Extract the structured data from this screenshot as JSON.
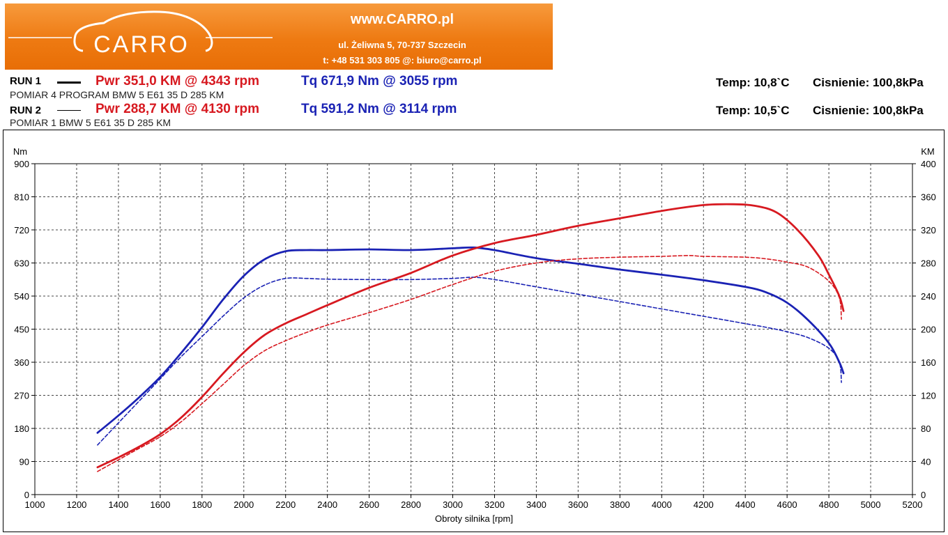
{
  "header": {
    "logo_text": "CARRO",
    "site": "www.CARRO.pl",
    "address": "ul. Żeliwna 5, 70-737 Szczecin",
    "contact": "t: +48 531 303 805   @: biuro@carro.pl"
  },
  "runs": [
    {
      "label": "RUN 1",
      "pwr": "Pwr  351,0 KM @ 4343 rpm",
      "tq": "Tq 671,9 Nm @ 3055 rpm",
      "description": "POMIAR 4 PROGRAM BMW 5 E61 35 D 285 KM",
      "temp": "Temp: 10,8`C",
      "pressure": "Cisnienie: 100,8kPa"
    },
    {
      "label": "RUN 2",
      "pwr": "Pwr  288,7 KM @ 4130 rpm",
      "tq": "Tq 591,2 Nm @ 3114 rpm",
      "description": "POMIAR 1 BMW 5 E61 35 D 285 KM",
      "temp": "Temp: 10,5`C",
      "pressure": "Cisnienie: 100,8kPa"
    }
  ],
  "colors": {
    "power": "#d71920",
    "torque": "#1a22b4",
    "accent": "#ee7a12"
  },
  "chart_data": {
    "type": "line",
    "xlabel": "Obroty silnika [rpm]",
    "ylabel": "Nm",
    "y2label": "KM",
    "xlim": [
      1000,
      5200
    ],
    "ylim": [
      0,
      900
    ],
    "y2lim": [
      0,
      400
    ],
    "xticks": [
      1000,
      1200,
      1400,
      1600,
      1800,
      2000,
      2200,
      2400,
      2600,
      2800,
      3000,
      3200,
      3400,
      3600,
      3800,
      4000,
      4200,
      4400,
      4600,
      4800,
      5000,
      5200
    ],
    "yticks": [
      0,
      90,
      180,
      270,
      360,
      450,
      540,
      630,
      720,
      810,
      900
    ],
    "y2ticks": [
      0,
      40,
      80,
      120,
      160,
      200,
      240,
      280,
      320,
      360,
      400
    ],
    "grid": true,
    "series": [
      {
        "axis": "left",
        "style": "solid",
        "color": "torque",
        "x": [
          1300,
          1400,
          1500,
          1600,
          1700,
          1800,
          1900,
          2000,
          2100,
          2200,
          2300,
          2400,
          2600,
          2800,
          3000,
          3100,
          3200,
          3400,
          3600,
          3800,
          4000,
          4200,
          4400,
          4500,
          4600,
          4700,
          4800,
          4850,
          4870
        ],
        "y": [
          168,
          215,
          265,
          320,
          385,
          455,
          530,
          595,
          640,
          662,
          665,
          665,
          667,
          665,
          670,
          672,
          665,
          643,
          628,
          612,
          598,
          583,
          565,
          550,
          522,
          475,
          412,
          360,
          330
        ]
      },
      {
        "axis": "left",
        "style": "dashed",
        "color": "torque",
        "x": [
          1300,
          1400,
          1500,
          1600,
          1700,
          1800,
          1900,
          2000,
          2100,
          2200,
          2300,
          2400,
          2600,
          2800,
          3000,
          3100,
          3200,
          3400,
          3600,
          3800,
          4000,
          4200,
          4400,
          4500,
          4600,
          4700,
          4800,
          4850,
          4860
        ],
        "y": [
          135,
          195,
          255,
          315,
          375,
          430,
          485,
          535,
          570,
          588,
          588,
          586,
          585,
          585,
          588,
          591,
          585,
          565,
          545,
          525,
          505,
          485,
          465,
          455,
          443,
          427,
          398,
          360,
          305
        ]
      },
      {
        "axis": "right",
        "style": "solid",
        "color": "power",
        "x": [
          1300,
          1400,
          1500,
          1600,
          1700,
          1800,
          1900,
          2000,
          2100,
          2200,
          2300,
          2400,
          2600,
          2800,
          3000,
          3200,
          3400,
          3600,
          3800,
          4000,
          4200,
          4343,
          4450,
          4550,
          4650,
          4750,
          4800,
          4850,
          4870
        ],
        "y": [
          33,
          45,
          58,
          73,
          93,
          118,
          146,
          172,
          193,
          207,
          218,
          229,
          250,
          268,
          289,
          304,
          314,
          325,
          334,
          343,
          350,
          351,
          349,
          341,
          320,
          289,
          266,
          240,
          222
        ]
      },
      {
        "axis": "right",
        "style": "dashed",
        "color": "power",
        "x": [
          1300,
          1400,
          1500,
          1600,
          1700,
          1800,
          1900,
          2000,
          2100,
          2200,
          2300,
          2400,
          2600,
          2800,
          3000,
          3200,
          3400,
          3600,
          3800,
          4000,
          4130,
          4200,
          4400,
          4500,
          4600,
          4700,
          4800,
          4850,
          4860
        ],
        "y": [
          28,
          42,
          56,
          70,
          88,
          110,
          133,
          156,
          174,
          186,
          196,
          205,
          220,
          236,
          254,
          270,
          280,
          285,
          287,
          288,
          289,
          288,
          287,
          285,
          281,
          275,
          258,
          238,
          212
        ]
      }
    ]
  }
}
